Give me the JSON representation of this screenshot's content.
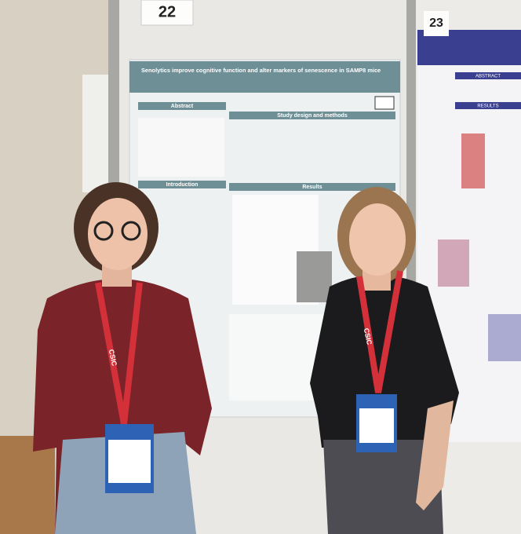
{
  "posters": [
    {
      "number": "22",
      "title": "Senolytics improve cognitive function and alter markers of senescence in SAMP8 mice",
      "sections": [
        "Abstract",
        "Study design and methods",
        "Introduction",
        "Results"
      ]
    },
    {
      "number": "23",
      "sections": [
        "ABSTRACT",
        "RESULTS"
      ]
    }
  ],
  "lanyards": [
    "CSIC",
    "CSIC"
  ]
}
